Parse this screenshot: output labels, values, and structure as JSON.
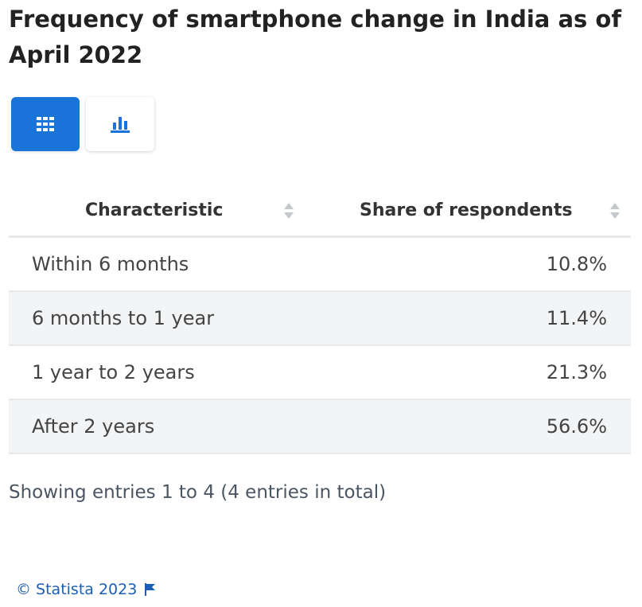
{
  "title": "Frequency of smartphone change in India as of April 2022",
  "view_toggle": {
    "table_icon": "table-grid-icon",
    "chart_icon": "bar-chart-icon",
    "active": "table"
  },
  "colors": {
    "accent": "#1a73d9",
    "row_alt": "#f2f4f6",
    "credit_link": "#1a5fb4"
  },
  "chart_data": {
    "type": "table",
    "title": "Frequency of smartphone change in India as of April 2022",
    "columns": [
      "Characteristic",
      "Share of respondents"
    ],
    "rows": [
      {
        "label": "Within 6 months",
        "value": "10.8%"
      },
      {
        "label": "6 months to 1 year",
        "value": "11.4%"
      },
      {
        "label": "1 year to 2 years",
        "value": "21.3%"
      },
      {
        "label": "After 2 years",
        "value": "56.6%"
      }
    ],
    "categories": [
      "Within 6 months",
      "6 months to 1 year",
      "1 year to 2 years",
      "After 2 years"
    ],
    "values": [
      10.8,
      11.4,
      21.3,
      56.6
    ]
  },
  "footer": {
    "entries_text": "Showing entries 1 to 4 (4 entries in total)",
    "credit": "© Statista 2023",
    "flag_icon": "flag-icon"
  }
}
